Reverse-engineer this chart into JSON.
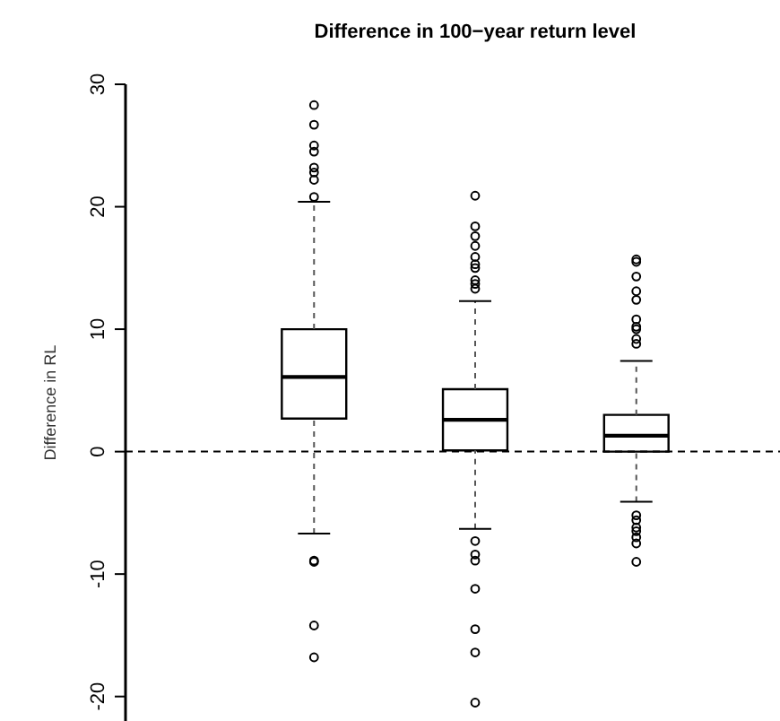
{
  "chart_data": {
    "type": "box",
    "title": "Difference in 100−year return level",
    "ylabel": "Difference in RL",
    "categories": [
      null,
      null,
      null
    ],
    "boxes": [
      {
        "low": -6.7,
        "q1": 2.7,
        "median": 6.1,
        "q3": 10,
        "high": 20.4,
        "outliers": [
          28.3,
          26.7,
          25.0,
          24.5,
          23.2,
          22.8,
          22.2,
          20.8,
          -8.9,
          -9.0,
          -14.2,
          -16.8
        ]
      },
      {
        "low": -6.3,
        "q1": 0.1,
        "median": 2.6,
        "q3": 5.1,
        "high": 12.3,
        "outliers": [
          20.9,
          18.4,
          17.6,
          16.8,
          15.9,
          15.3,
          15.0,
          14.0,
          13.7,
          13.3,
          -7.3,
          -8.4,
          -8.9,
          -11.2,
          -14.5,
          -16.4,
          -20.5
        ]
      },
      {
        "low": -4.1,
        "q1": 0.0,
        "median": 1.3,
        "q3": 3.0,
        "high": 7.4,
        "outliers": [
          15.7,
          15.5,
          14.3,
          13.1,
          12.4,
          10.8,
          10.2,
          10.0,
          9.2,
          8.8,
          -5.2,
          -5.6,
          -6.2,
          -6.5,
          -7.0,
          -7.5,
          -9.0
        ]
      }
    ],
    "color": "#000000",
    "ylim": [
      -22,
      30
    ],
    "yticks": [
      -20,
      -10,
      0,
      10,
      20,
      30
    ],
    "ref_lines": [
      {
        "axis": "y",
        "value": 0,
        "line_style": "dashed"
      }
    ],
    "tick_labels": "y"
  }
}
